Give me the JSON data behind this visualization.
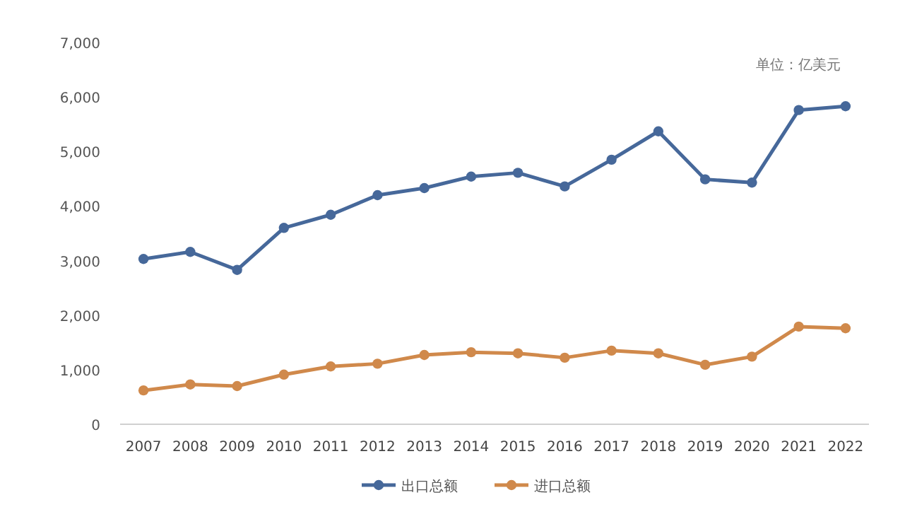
{
  "chart_data": {
    "type": "line",
    "categories": [
      "2007",
      "2008",
      "2009",
      "2010",
      "2011",
      "2012",
      "2013",
      "2014",
      "2015",
      "2016",
      "2017",
      "2018",
      "2019",
      "2020",
      "2021",
      "2022"
    ],
    "series": [
      {
        "name": "出口总额",
        "color": "#46689a",
        "values": [
          3030,
          3160,
          2830,
          3600,
          3840,
          4200,
          4330,
          4540,
          4610,
          4360,
          4850,
          5370,
          4490,
          4430,
          5760,
          5830
        ]
      },
      {
        "name": "进口总额",
        "color": "#d0894b",
        "values": [
          620,
          730,
          700,
          910,
          1060,
          1110,
          1270,
          1320,
          1300,
          1220,
          1350,
          1300,
          1090,
          1240,
          1790,
          1760
        ]
      }
    ],
    "ylim": [
      0,
      7000
    ],
    "yticks": [
      {
        "value": 0,
        "label": "0"
      },
      {
        "value": 1000,
        "label": "1,000"
      },
      {
        "value": 2000,
        "label": "2,000"
      },
      {
        "value": 3000,
        "label": "3,000"
      },
      {
        "value": 4000,
        "label": "4,000"
      },
      {
        "value": 5000,
        "label": "5,000"
      },
      {
        "value": 6000,
        "label": "6,000"
      },
      {
        "value": 7000,
        "label": "7,000"
      }
    ],
    "grid": false,
    "legend": "bottom",
    "marker": "circle",
    "line_style": "solid",
    "annotations": [
      "单位：亿美元"
    ]
  }
}
